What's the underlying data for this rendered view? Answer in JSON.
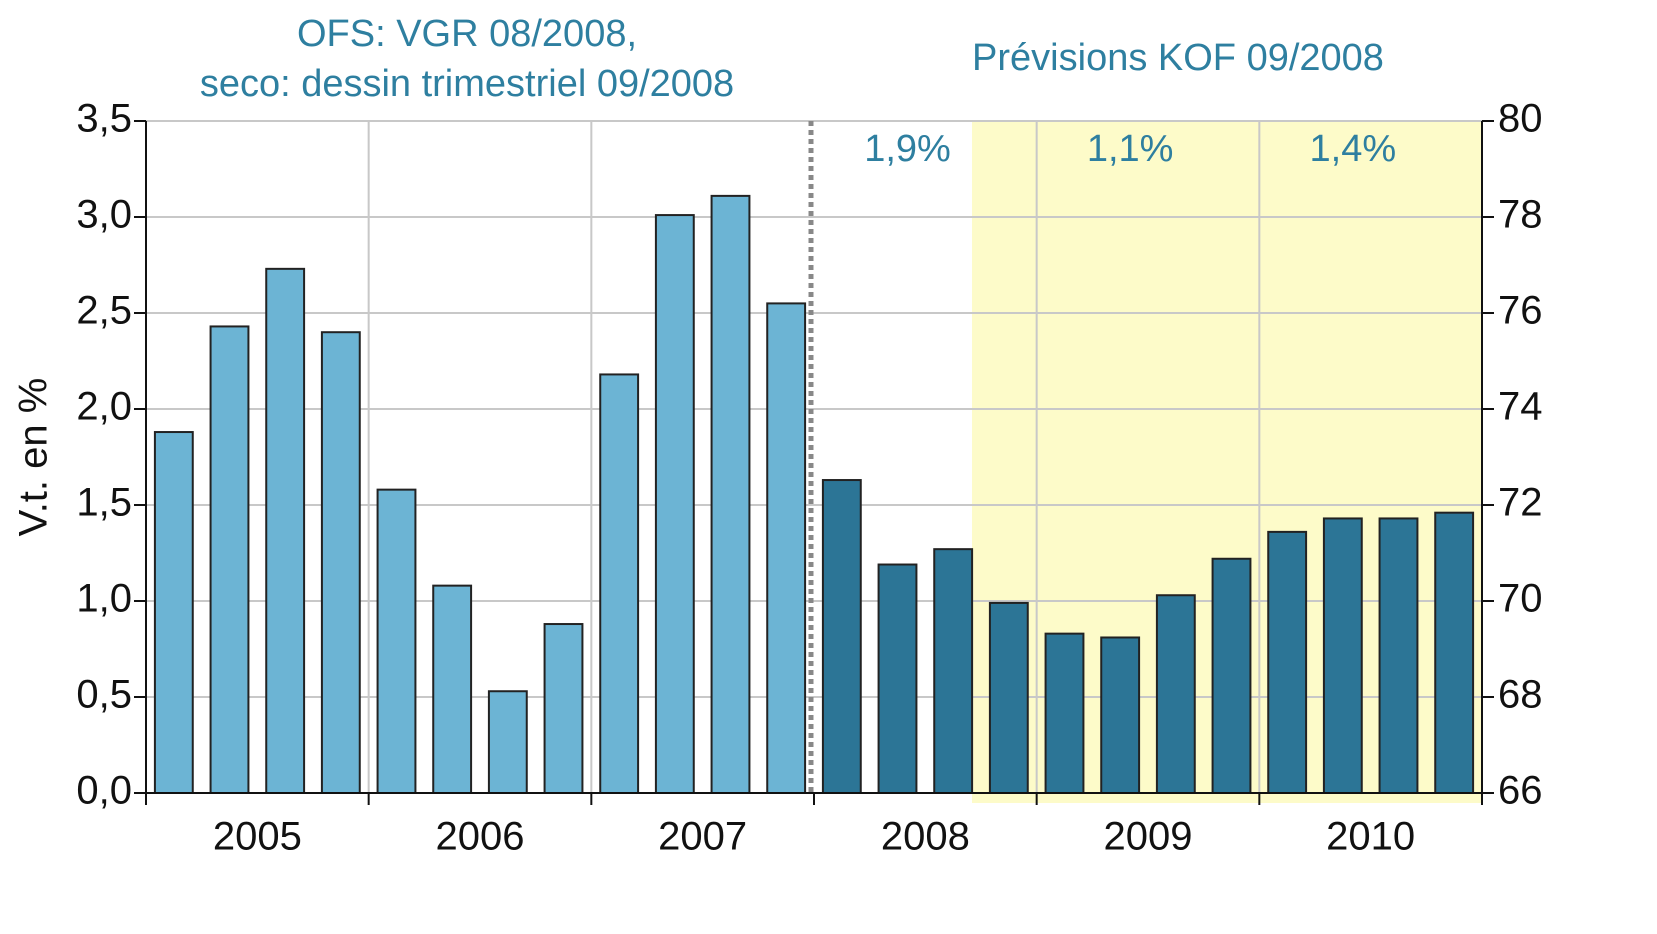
{
  "chart_data": {
    "type": "bar",
    "header_left": [
      "OFS: VGR 08/2008,",
      "seco: dessin trimestriel 09/2008"
    ],
    "header_right": "Prévisions KOF 09/2008",
    "ylabel": "V.t. en %",
    "categories": [
      null,
      null,
      null,
      null,
      null,
      null,
      null,
      null,
      null,
      null,
      null,
      null,
      null,
      null,
      null,
      null,
      null,
      null,
      null,
      null,
      null,
      null,
      null,
      null
    ],
    "year_labels": [
      "2005",
      "2006",
      "2007",
      "2008",
      "2009",
      "2010"
    ],
    "series": [
      {
        "color": "#6cb4d4",
        "values": [
          1.88,
          2.43,
          2.73,
          2.4,
          1.58,
          1.08,
          0.53,
          0.88,
          2.18,
          3.01,
          3.11,
          2.55,
          null,
          null,
          null,
          null,
          null,
          null,
          null,
          null,
          null,
          null,
          null,
          null
        ]
      },
      {
        "color": "#2c7596",
        "values": [
          null,
          null,
          null,
          null,
          null,
          null,
          null,
          null,
          null,
          null,
          null,
          null,
          1.63,
          1.19,
          1.27,
          0.99,
          0.83,
          0.81,
          1.03,
          1.22,
          1.36,
          1.43,
          1.43,
          1.46
        ]
      }
    ],
    "annotations": [
      "1,9%",
      "1,1%",
      "1,4%"
    ],
    "ylim": [
      0,
      3.5
    ],
    "yticks": [
      {
        "value": 0,
        "label": "0,0"
      },
      {
        "value": 0.5,
        "label": "0,5"
      },
      {
        "value": 1,
        "label": "1,0"
      },
      {
        "value": 1.5,
        "label": "1,5"
      },
      {
        "value": 2,
        "label": "2,0"
      },
      {
        "value": 2.5,
        "label": "2,5"
      },
      {
        "value": 3,
        "label": "3,0"
      },
      {
        "value": 3.5,
        "label": "3,5"
      }
    ],
    "y2lim": [
      66,
      80
    ],
    "y2ticks": [
      66,
      68,
      70,
      72,
      74,
      76,
      78,
      80
    ],
    "grid": true
  }
}
